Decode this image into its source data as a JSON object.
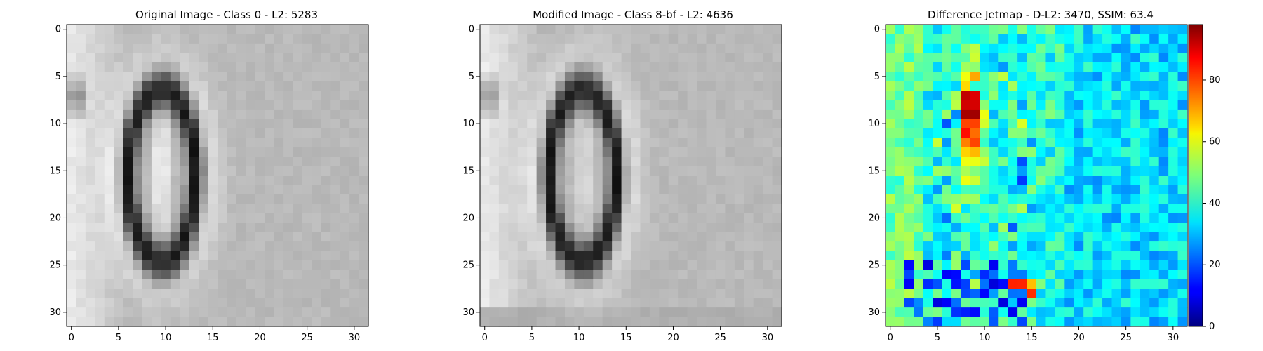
{
  "chart_data": [
    {
      "type": "heatmap",
      "title": "Original Image - Class 0 - L2: 5283",
      "title_color": "#000000",
      "colormap": "gray",
      "xticks": [
        0,
        5,
        10,
        15,
        20,
        25,
        30
      ],
      "yticks": [
        0,
        5,
        10,
        15,
        20,
        25,
        30
      ],
      "xlim": [
        0,
        31
      ],
      "ylim": [
        0,
        31
      ],
      "grid": false
    },
    {
      "type": "heatmap",
      "title": "Modified Image - Class 8-bf - L2: 4636",
      "title_color": "#ff0000",
      "colormap": "gray",
      "xticks": [
        0,
        5,
        10,
        15,
        20,
        25,
        30
      ],
      "yticks": [
        0,
        5,
        10,
        15,
        20,
        25,
        30
      ],
      "xlim": [
        0,
        31
      ],
      "ylim": [
        0,
        31
      ],
      "grid": false
    },
    {
      "type": "heatmap",
      "title": "Difference Jetmap - D-L2: 3470, SSIM: 63.4",
      "title_color": "#000000",
      "colormap": "jet",
      "xticks": [
        0,
        5,
        10,
        15,
        20,
        25,
        30
      ],
      "yticks": [
        0,
        5,
        10,
        15,
        20,
        25,
        30
      ],
      "xlim": [
        0,
        31
      ],
      "ylim": [
        0,
        31
      ],
      "colorbar": {
        "ticks": [
          0,
          20,
          40,
          60,
          80
        ],
        "range": [
          0,
          98
        ]
      },
      "grid": false
    }
  ]
}
